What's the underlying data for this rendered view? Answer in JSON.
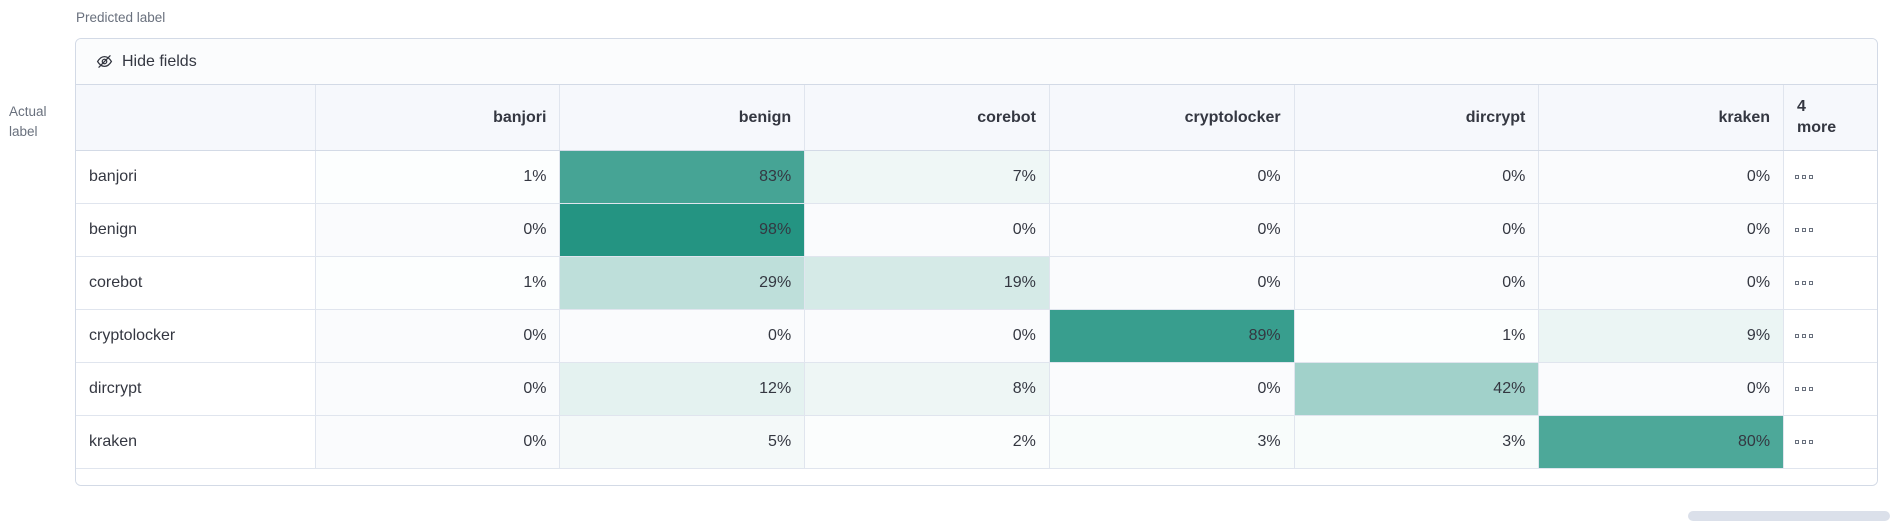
{
  "axis": {
    "predicted": "Predicted label",
    "actual": "Actual\nlabel"
  },
  "toolbar": {
    "hide_fields_label": "Hide fields"
  },
  "chart_data": {
    "type": "heatmap",
    "xlabel": "Predicted label",
    "ylabel": "Actual label",
    "value_suffix": "%",
    "heat_base_color": "#209280",
    "value_range": [
      0,
      100
    ],
    "columns": [
      "banjori",
      "benign",
      "corebot",
      "cryptolocker",
      "dircrypt",
      "kraken"
    ],
    "overflow_column": "4\nmore",
    "rows": [
      {
        "label": "banjori",
        "values_pct": [
          1,
          83,
          7,
          0,
          0,
          0
        ]
      },
      {
        "label": "benign",
        "values_pct": [
          0,
          98,
          0,
          0,
          0,
          0
        ]
      },
      {
        "label": "corebot",
        "values_pct": [
          1,
          29,
          19,
          0,
          0,
          0
        ]
      },
      {
        "label": "cryptolocker",
        "values_pct": [
          0,
          0,
          0,
          89,
          1,
          9
        ]
      },
      {
        "label": "dircrypt",
        "values_pct": [
          0,
          12,
          8,
          0,
          42,
          0
        ]
      },
      {
        "label": "kraken",
        "values_pct": [
          0,
          5,
          2,
          3,
          3,
          80
        ]
      }
    ]
  }
}
